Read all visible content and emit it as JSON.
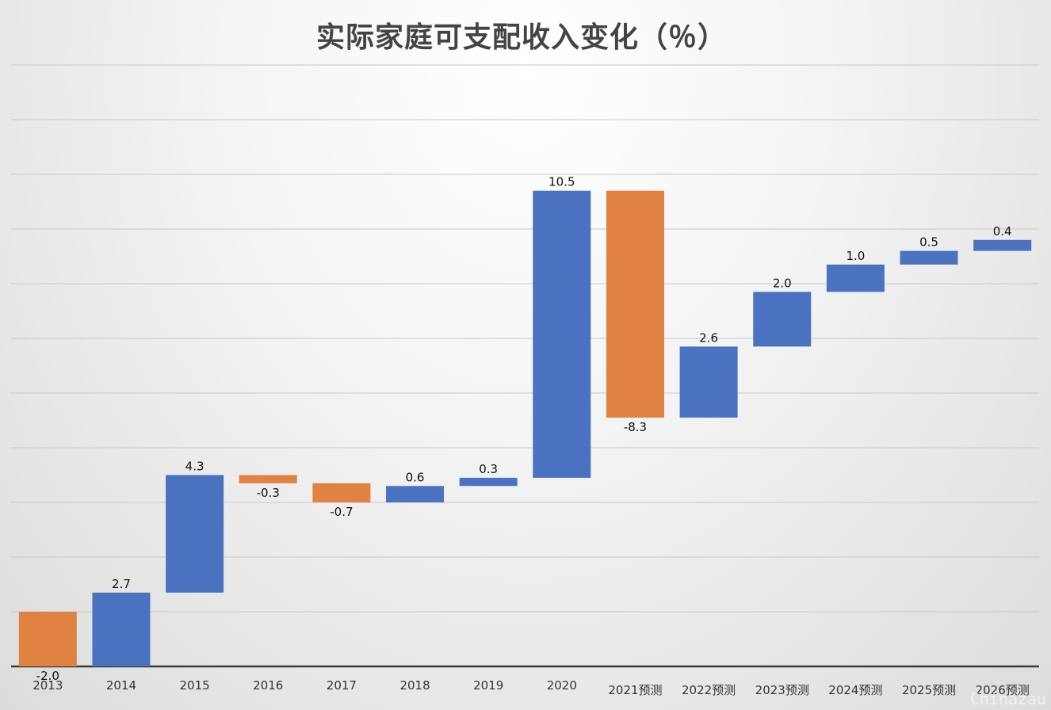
{
  "chart_data": {
    "type": "bar",
    "subtype": "waterfall",
    "title": "实际家庭可支配收入变化（％）",
    "xlabel": "",
    "ylabel": "",
    "categories": [
      "2013",
      "2014",
      "2015",
      "2016",
      "2017",
      "2018",
      "2019",
      "2020",
      "2021预测",
      "2022预测",
      "2023预测",
      "2024预测",
      "2025预测",
      "2026预测"
    ],
    "values": [
      -2.0,
      2.7,
      4.3,
      -0.3,
      -0.7,
      0.6,
      0.3,
      10.5,
      -8.3,
      2.6,
      2.0,
      1.0,
      0.5,
      0.4
    ],
    "data_labels": [
      "-2.0",
      "2.7",
      "4.3",
      "-0.3",
      "-0.7",
      "0.6",
      "0.3",
      "10.5",
      "-8.3",
      "2.6",
      "2.0",
      "1.0",
      "0.5",
      "0.4"
    ],
    "grid": true,
    "legend": "none",
    "colors": {
      "increase": "#4a72c0",
      "decrease": "#e08242"
    }
  },
  "watermark": "Chinazau"
}
